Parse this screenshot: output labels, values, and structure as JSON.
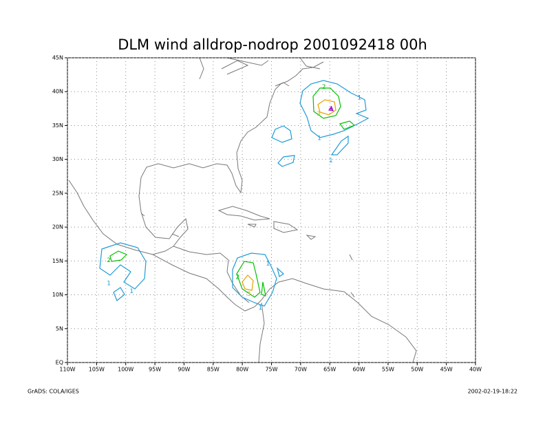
{
  "chart_data": {
    "type": "map",
    "title": "DLM wind alldrop-nodrop 2001092418 00h",
    "footer_left": "GrADS: COLA/IGES",
    "footer_right": "2002-02-19-18:22",
    "xlim": [
      -110,
      -40
    ],
    "ylim": [
      0,
      45
    ],
    "xticks": [
      {
        "value": -110,
        "label": "110W"
      },
      {
        "value": -105,
        "label": "105W"
      },
      {
        "value": -100,
        "label": "100W"
      },
      {
        "value": -95,
        "label": "95W"
      },
      {
        "value": -90,
        "label": "90W"
      },
      {
        "value": -85,
        "label": "85W"
      },
      {
        "value": -80,
        "label": "80W"
      },
      {
        "value": -75,
        "label": "75W"
      },
      {
        "value": -70,
        "label": "70W"
      },
      {
        "value": -65,
        "label": "65W"
      },
      {
        "value": -60,
        "label": "60W"
      },
      {
        "value": -55,
        "label": "55W"
      },
      {
        "value": -50,
        "label": "50W"
      },
      {
        "value": -45,
        "label": "45W"
      },
      {
        "value": -40,
        "label": "40W"
      }
    ],
    "yticks": [
      {
        "value": 0,
        "label": "EQ"
      },
      {
        "value": 5,
        "label": "5N"
      },
      {
        "value": 10,
        "label": "10N"
      },
      {
        "value": 15,
        "label": "15N"
      },
      {
        "value": 20,
        "label": "20N"
      },
      {
        "value": 25,
        "label": "25N"
      },
      {
        "value": 30,
        "label": "30N"
      },
      {
        "value": 35,
        "label": "35N"
      },
      {
        "value": 40,
        "label": "40N"
      },
      {
        "value": 45,
        "label": "45N"
      }
    ],
    "grid": true,
    "contour_labels": [
      {
        "label": "1",
        "lon": -59.9,
        "lat": 39.1,
        "color": "#1e9bd7"
      },
      {
        "label": "2",
        "lon": -66.0,
        "lat": 40.7,
        "color": "#00c000"
      },
      {
        "label": "3",
        "lon": -66.9,
        "lat": 36.7,
        "color": "#e8a000"
      },
      {
        "label": "4",
        "lon": -64.8,
        "lat": 37.5,
        "color": "#a000c8"
      },
      {
        "label": "1",
        "lon": -66.8,
        "lat": 33.1,
        "color": "#1e9bd7"
      },
      {
        "label": "1",
        "lon": -64.8,
        "lat": 29.8,
        "color": "#1e9bd7"
      },
      {
        "label": "2",
        "lon": -102.9,
        "lat": 15.1,
        "color": "#00c000"
      },
      {
        "label": "1",
        "lon": -102.9,
        "lat": 11.7,
        "color": "#1e9bd7"
      },
      {
        "label": "1",
        "lon": -99.0,
        "lat": 10.5,
        "color": "#1e9bd7"
      },
      {
        "label": "2",
        "lon": -80.8,
        "lat": 12.6,
        "color": "#00c000"
      },
      {
        "label": "3",
        "lon": -78.9,
        "lat": 10.1,
        "color": "#e8a000"
      },
      {
        "label": "1",
        "lon": -75.6,
        "lat": 14.6,
        "color": "#1e9bd7"
      },
      {
        "label": "1",
        "lon": -76.9,
        "lat": 8.1,
        "color": "#1e9bd7"
      }
    ]
  }
}
